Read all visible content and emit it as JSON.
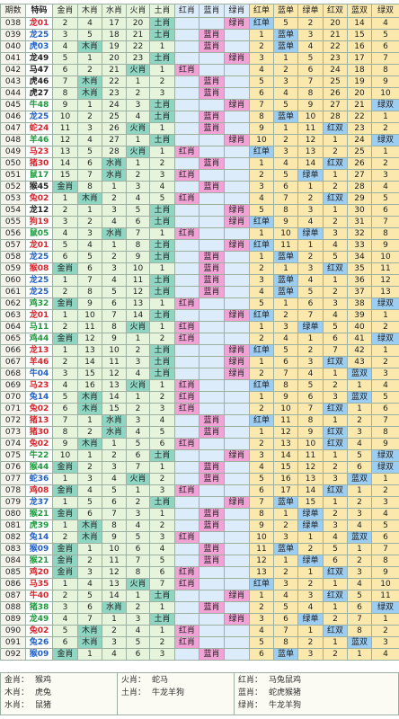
{
  "header": [
    "期数",
    "特码",
    "金肖",
    "木肖",
    "水肖",
    "火肖",
    "土肖",
    "红肖",
    "蓝肖",
    "绿肖",
    "红单",
    "蓝单",
    "绿单",
    "红双",
    "蓝双",
    "绿双"
  ],
  "rows": [
    [
      "038",
      "龙01",
      2,
      4,
      17,
      20,
      "土肖",
      null,
      null,
      "绿肖",
      "红单",
      5,
      2,
      20,
      14,
      4
    ],
    [
      "039",
      "龙25",
      3,
      5,
      18,
      21,
      "土肖",
      null,
      "蓝肖",
      null,
      1,
      "蓝单",
      3,
      21,
      15,
      5
    ],
    [
      "040",
      "虎03",
      4,
      "木肖",
      19,
      22,
      1,
      null,
      "蓝肖",
      null,
      2,
      "蓝单",
      4,
      22,
      16,
      6
    ],
    [
      "041",
      "龙49",
      5,
      1,
      20,
      23,
      "土肖",
      null,
      null,
      "绿肖",
      3,
      1,
      5,
      23,
      17,
      7
    ],
    [
      "042",
      "马47",
      6,
      2,
      21,
      "火肖",
      1,
      "红肖",
      null,
      null,
      4,
      2,
      6,
      24,
      18,
      8
    ],
    [
      "043",
      "虎46",
      7,
      "木肖",
      22,
      1,
      2,
      null,
      "蓝肖",
      null,
      5,
      3,
      7,
      25,
      19,
      9
    ],
    [
      "044",
      "虎27",
      8,
      "木肖",
      23,
      2,
      3,
      null,
      "蓝肖",
      null,
      6,
      4,
      8,
      26,
      20,
      10
    ],
    [
      "045",
      "牛48",
      9,
      1,
      24,
      3,
      "土肖",
      null,
      null,
      "绿肖",
      7,
      5,
      9,
      27,
      21,
      "绿双"
    ],
    [
      "046",
      "龙25",
      10,
      2,
      25,
      4,
      "土肖",
      null,
      "蓝肖",
      null,
      8,
      "蓝单",
      10,
      28,
      22,
      1
    ],
    [
      "047",
      "蛇24",
      11,
      3,
      26,
      "火肖",
      1,
      null,
      "蓝肖",
      null,
      9,
      1,
      11,
      "红双",
      23,
      2
    ],
    [
      "048",
      "羊46",
      12,
      4,
      27,
      1,
      "土肖",
      null,
      null,
      "绿肖",
      10,
      2,
      12,
      1,
      24,
      "绿双"
    ],
    [
      "049",
      "马23",
      13,
      5,
      28,
      "火肖",
      1,
      "红肖",
      null,
      null,
      "红单",
      3,
      13,
      2,
      25,
      1
    ],
    [
      "050",
      "猪30",
      14,
      6,
      "水肖",
      1,
      2,
      null,
      "蓝肖",
      null,
      1,
      4,
      14,
      "红双",
      26,
      2
    ],
    [
      "051",
      "鼠17",
      15,
      7,
      "水肖",
      2,
      3,
      "红肖",
      null,
      null,
      2,
      5,
      "绿单",
      1,
      27,
      3
    ],
    [
      "052",
      "猴45",
      "金肖",
      8,
      1,
      3,
      4,
      null,
      "蓝肖",
      null,
      3,
      6,
      1,
      2,
      28,
      4
    ],
    [
      "053",
      "兔02",
      1,
      "木肖",
      2,
      4,
      5,
      "红肖",
      null,
      null,
      4,
      7,
      2,
      "红双",
      29,
      5
    ],
    [
      "054",
      "龙12",
      2,
      1,
      3,
      5,
      "土肖",
      null,
      null,
      "绿肖",
      5,
      8,
      3,
      1,
      30,
      6
    ],
    [
      "055",
      "狗19",
      3,
      2,
      4,
      6,
      "土肖",
      null,
      null,
      "绿肖",
      "红单",
      9,
      4,
      2,
      31,
      7
    ],
    [
      "056",
      "鼠05",
      4,
      3,
      "水肖",
      7,
      1,
      "红肖",
      null,
      null,
      1,
      10,
      "绿单",
      3,
      32,
      8
    ],
    [
      "057",
      "龙01",
      5,
      4,
      1,
      8,
      "土肖",
      null,
      null,
      "绿肖",
      "红单",
      11,
      1,
      4,
      33,
      9
    ],
    [
      "058",
      "龙25",
      6,
      5,
      2,
      9,
      "土肖",
      null,
      "蓝肖",
      null,
      1,
      "蓝单",
      2,
      5,
      34,
      10
    ],
    [
      "059",
      "猴08",
      "金肖",
      6,
      3,
      10,
      1,
      null,
      "蓝肖",
      null,
      2,
      1,
      3,
      "红双",
      35,
      11
    ],
    [
      "060",
      "龙25",
      1,
      7,
      4,
      11,
      "土肖",
      null,
      "蓝肖",
      null,
      3,
      "蓝单",
      4,
      1,
      36,
      12
    ],
    [
      "061",
      "龙25",
      2,
      8,
      5,
      12,
      "土肖",
      null,
      "蓝肖",
      null,
      4,
      "蓝单",
      5,
      2,
      37,
      13
    ],
    [
      "062",
      "鸡32",
      "金肖",
      9,
      6,
      13,
      1,
      "红肖",
      null,
      null,
      5,
      1,
      6,
      3,
      38,
      "绿双"
    ],
    [
      "063",
      "龙01",
      1,
      10,
      7,
      14,
      "土肖",
      null,
      null,
      "绿肖",
      "红单",
      2,
      7,
      4,
      39,
      1
    ],
    [
      "064",
      "马11",
      2,
      11,
      8,
      "火肖",
      1,
      "红肖",
      null,
      null,
      1,
      3,
      "绿单",
      5,
      40,
      2
    ],
    [
      "065",
      "鸡44",
      "金肖",
      12,
      9,
      1,
      2,
      "红肖",
      null,
      null,
      2,
      4,
      1,
      6,
      41,
      "绿双"
    ],
    [
      "066",
      "龙13",
      1,
      13,
      10,
      2,
      "土肖",
      null,
      null,
      "绿肖",
      "红单",
      5,
      2,
      7,
      42,
      1
    ],
    [
      "067",
      "羊46",
      2,
      14,
      11,
      3,
      "土肖",
      null,
      null,
      "绿肖",
      1,
      6,
      3,
      "红双",
      43,
      2
    ],
    [
      "068",
      "牛04",
      3,
      15,
      12,
      4,
      "土肖",
      null,
      null,
      "绿肖",
      2,
      7,
      4,
      1,
      "蓝双",
      3
    ],
    [
      "069",
      "马23",
      4,
      16,
      13,
      "火肖",
      1,
      "红肖",
      null,
      null,
      "红单",
      8,
      5,
      2,
      1,
      4
    ],
    [
      "070",
      "兔14",
      5,
      "木肖",
      14,
      1,
      2,
      "红肖",
      null,
      null,
      1,
      9,
      6,
      3,
      "蓝双",
      5
    ],
    [
      "071",
      "兔02",
      6,
      "木肖",
      15,
      2,
      3,
      "红肖",
      null,
      null,
      2,
      10,
      7,
      "红双",
      1,
      6
    ],
    [
      "072",
      "猪13",
      7,
      1,
      "水肖",
      3,
      4,
      null,
      "蓝肖",
      null,
      "红单",
      11,
      8,
      1,
      2,
      7
    ],
    [
      "073",
      "猪30",
      8,
      2,
      "水肖",
      4,
      5,
      null,
      "蓝肖",
      null,
      1,
      12,
      9,
      "红双",
      3,
      8
    ],
    [
      "074",
      "兔02",
      9,
      "木肖",
      1,
      5,
      6,
      "红肖",
      null,
      null,
      2,
      13,
      10,
      "红双",
      4,
      9
    ],
    [
      "075",
      "牛22",
      10,
      1,
      2,
      6,
      "土肖",
      null,
      null,
      "绿肖",
      3,
      14,
      11,
      1,
      5,
      "绿双"
    ],
    [
      "076",
      "猴44",
      "金肖",
      2,
      3,
      7,
      1,
      null,
      "蓝肖",
      null,
      4,
      15,
      12,
      2,
      6,
      "绿双"
    ],
    [
      "077",
      "蛇36",
      1,
      3,
      4,
      "火肖",
      2,
      null,
      "蓝肖",
      null,
      5,
      16,
      13,
      3,
      "蓝双",
      1
    ],
    [
      "078",
      "鸡08",
      "金肖",
      4,
      5,
      1,
      3,
      "红肖",
      null,
      null,
      6,
      17,
      14,
      "红双",
      1,
      2
    ],
    [
      "079",
      "龙37",
      1,
      5,
      6,
      2,
      "土肖",
      null,
      null,
      "绿肖",
      7,
      "蓝单",
      15,
      1,
      2,
      3
    ],
    [
      "080",
      "猴21",
      "金肖",
      6,
      7,
      3,
      1,
      null,
      "蓝肖",
      null,
      8,
      1,
      "绿单",
      2,
      3,
      4
    ],
    [
      "081",
      "虎39",
      1,
      "木肖",
      8,
      4,
      2,
      null,
      "蓝肖",
      null,
      9,
      2,
      "绿单",
      3,
      4,
      5
    ],
    [
      "082",
      "兔14",
      2,
      "木肖",
      9,
      5,
      3,
      "红肖",
      null,
      null,
      10,
      3,
      1,
      4,
      "蓝双",
      6
    ],
    [
      "083",
      "猴09",
      "金肖",
      1,
      10,
      6,
      4,
      null,
      "蓝肖",
      null,
      11,
      "蓝单",
      2,
      5,
      1,
      7
    ],
    [
      "084",
      "猴21",
      "金肖",
      2,
      11,
      7,
      5,
      null,
      "蓝肖",
      null,
      12,
      1,
      "绿单",
      6,
      2,
      8
    ],
    [
      "085",
      "鸡20",
      "金肖",
      3,
      12,
      8,
      6,
      "红肖",
      null,
      null,
      13,
      2,
      1,
      "红双",
      3,
      9
    ],
    [
      "086",
      "马35",
      1,
      4,
      13,
      "火肖",
      7,
      "红肖",
      null,
      null,
      "红单",
      3,
      2,
      1,
      4,
      10
    ],
    [
      "087",
      "牛40",
      2,
      5,
      14,
      1,
      "土肖",
      null,
      null,
      "绿肖",
      1,
      4,
      3,
      "红双",
      5,
      11
    ],
    [
      "088",
      "猪38",
      3,
      6,
      "水肖",
      2,
      1,
      null,
      "蓝肖",
      null,
      2,
      5,
      4,
      1,
      6,
      "绿双"
    ],
    [
      "089",
      "龙49",
      4,
      7,
      1,
      3,
      "土肖",
      null,
      null,
      "绿肖",
      3,
      6,
      "绿单",
      2,
      7,
      1
    ],
    [
      "090",
      "兔02",
      5,
      "木肖",
      2,
      4,
      1,
      "红肖",
      null,
      null,
      4,
      7,
      1,
      "红双",
      8,
      2
    ],
    [
      "091",
      "兔26",
      6,
      "木肖",
      3,
      5,
      2,
      "红肖",
      null,
      null,
      5,
      8,
      2,
      1,
      "蓝双",
      3
    ],
    [
      "092",
      "猴09",
      "金肖",
      1,
      4,
      6,
      3,
      null,
      "蓝肖",
      null,
      6,
      "蓝单",
      3,
      2,
      1,
      4
    ]
  ],
  "legend": [
    [
      [
        "金肖：",
        "猴鸡"
      ],
      [
        "木肖：",
        "虎兔"
      ],
      [
        "水肖：",
        "鼠猪"
      ]
    ],
    [
      [
        "火肖：",
        "蛇马"
      ],
      [
        "土肖：",
        "牛龙羊狗"
      ]
    ],
    [
      [
        "红肖：",
        "马兔鼠鸡"
      ],
      [
        "蓝肖：",
        "蛇虎猴猪"
      ],
      [
        "绿肖：",
        "牛龙羊狗"
      ]
    ]
  ]
}
